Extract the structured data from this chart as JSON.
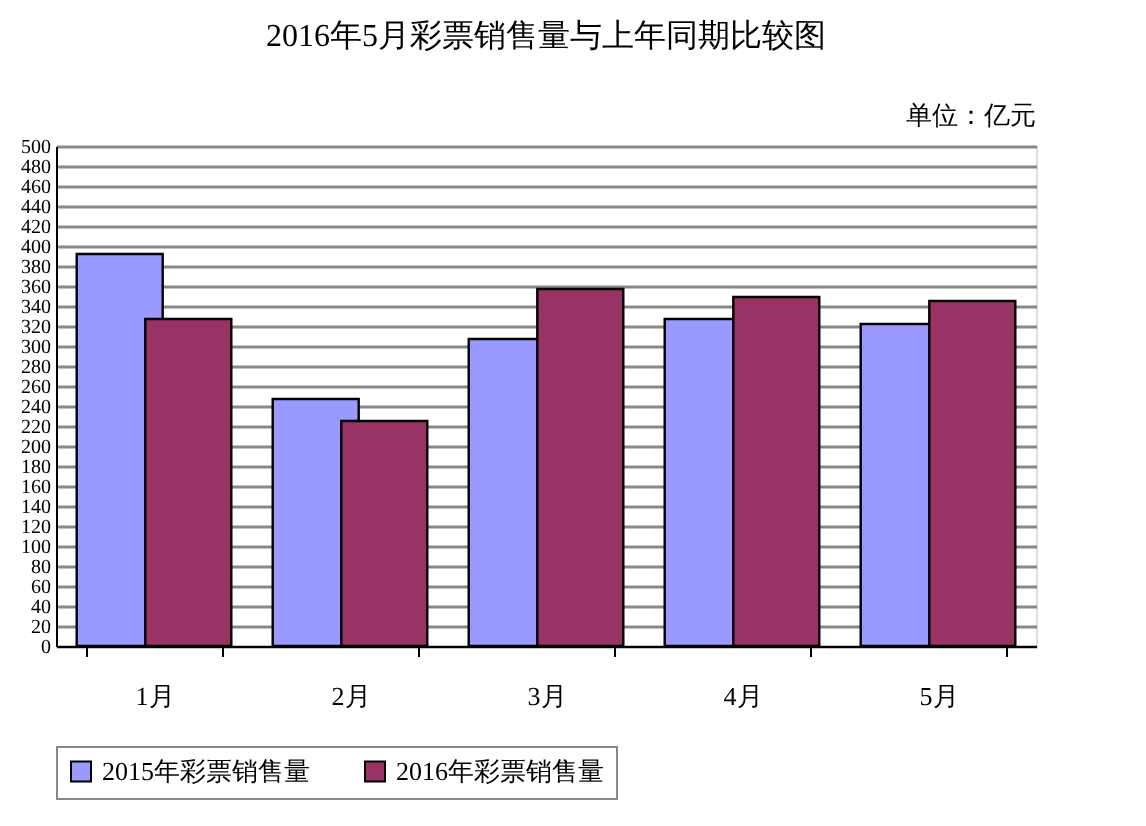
{
  "chart_data": {
    "type": "bar",
    "title": "2016年5月彩票销售量与上年同期比较图",
    "annotations": [
      "单位：亿元"
    ],
    "categories": [
      "1月",
      "2月",
      "3月",
      "4月",
      "5月"
    ],
    "series": [
      {
        "name": "2015年彩票销售量",
        "color": "#9999ff",
        "values": [
          392,
          247,
          307,
          327,
          322
        ]
      },
      {
        "name": "2016年彩票销售量",
        "color": "#993366",
        "values": [
          327,
          225,
          357,
          349,
          345
        ]
      }
    ],
    "ylim": [
      0,
      500
    ],
    "yticks": [
      0,
      20,
      40,
      60,
      80,
      100,
      120,
      140,
      160,
      180,
      200,
      220,
      240,
      260,
      280,
      300,
      320,
      340,
      360,
      380,
      400,
      420,
      440,
      460,
      480,
      500
    ],
    "grid": "y",
    "legend": "bottom"
  }
}
